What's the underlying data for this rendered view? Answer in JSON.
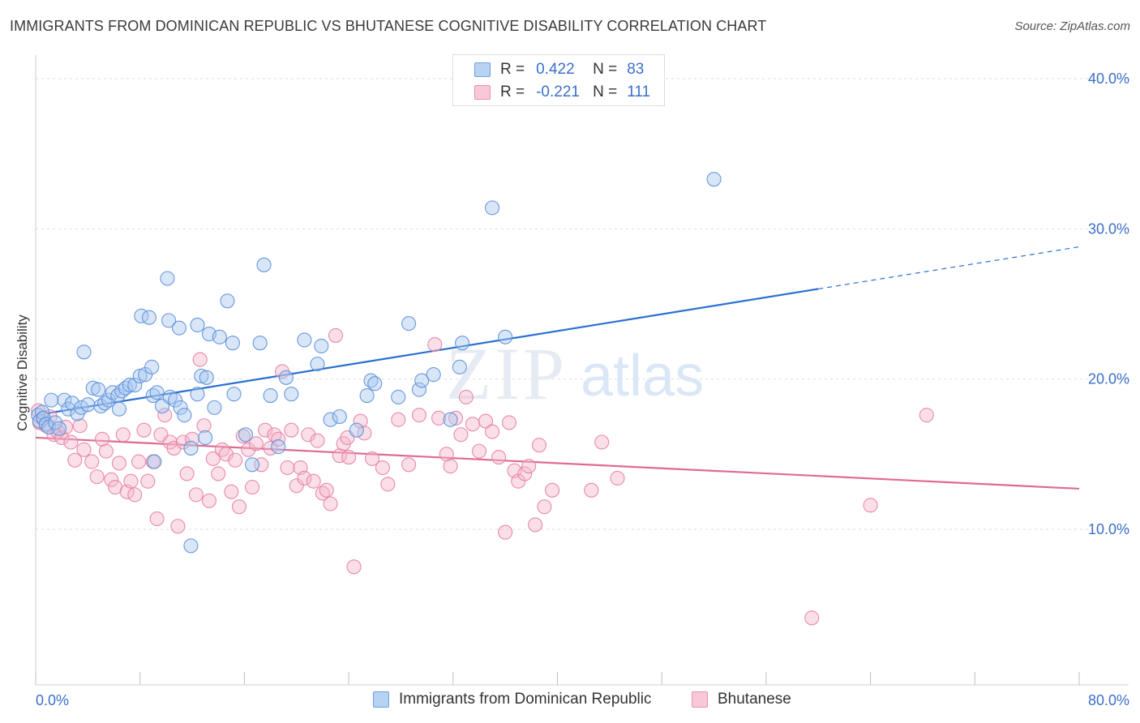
{
  "header": {
    "title": "IMMIGRANTS FROM DOMINICAN REPUBLIC VS BHUTANESE COGNITIVE DISABILITY CORRELATION CHART",
    "source": "Source: ZipAtlas.com"
  },
  "legend_top": {
    "rows": [
      {
        "r_label": "R =",
        "r_value": "0.422",
        "n_label": "N =",
        "n_value": "83"
      },
      {
        "r_label": "R =",
        "r_value": "-0.221",
        "n_label": "N =",
        "n_value": "111"
      }
    ]
  },
  "watermark": {
    "zip": "ZIP",
    "atlas": "atlas"
  },
  "colors": {
    "blue_fill": "#a9c8f0",
    "blue_stroke": "#5a8fd8",
    "blue_line": "#2a6fd0",
    "pink_fill": "#f5b5cb",
    "pink_stroke": "#e57fa3",
    "pink_line": "#e06a95",
    "axis_label": "#3b6fc9",
    "grid": "#dddddd"
  },
  "chart_data": {
    "type": "scatter",
    "title": "IMMIGRANTS FROM DOMINICAN REPUBLIC VS BHUTANESE COGNITIVE DISABILITY CORRELATION CHART",
    "xlabel": "",
    "ylabel": "Cognitive Disability",
    "xlim": [
      0,
      80
    ],
    "ylim": [
      0,
      42
    ],
    "x_tick_labels": [
      "0.0%",
      "80.0%"
    ],
    "y_ticks": [
      10,
      20,
      30,
      40
    ],
    "y_tick_labels": [
      "10.0%",
      "20.0%",
      "30.0%",
      "40.0%"
    ],
    "grid": true,
    "legend_position": "bottom",
    "series": [
      {
        "name": "Immigrants from Dominican Republic",
        "color": "#5a8fd8",
        "r": 0.422,
        "n": 83,
        "trend": {
          "x": [
            0,
            60,
            80
          ],
          "y": [
            17.6,
            26.0,
            28.8
          ],
          "solid_until": 60
        },
        "points": [
          [
            0.2,
            17.6
          ],
          [
            0.3,
            17.2
          ],
          [
            0.5,
            17.8
          ],
          [
            0.6,
            17.4
          ],
          [
            0.8,
            17.0
          ],
          [
            1.0,
            16.8
          ],
          [
            1.2,
            18.6
          ],
          [
            1.5,
            17.1
          ],
          [
            1.8,
            16.7
          ],
          [
            2.2,
            18.6
          ],
          [
            2.5,
            18.0
          ],
          [
            2.8,
            18.4
          ],
          [
            3.2,
            17.7
          ],
          [
            3.5,
            18.1
          ],
          [
            4.0,
            18.3
          ],
          [
            4.4,
            19.4
          ],
          [
            4.8,
            19.3
          ],
          [
            5.0,
            18.2
          ],
          [
            5.3,
            18.4
          ],
          [
            5.6,
            18.6
          ],
          [
            3.7,
            21.8
          ],
          [
            5.9,
            19.1
          ],
          [
            6.3,
            18.9
          ],
          [
            6.6,
            19.2
          ],
          [
            6.4,
            18.0
          ],
          [
            6.9,
            19.4
          ],
          [
            7.2,
            19.6
          ],
          [
            7.6,
            19.6
          ],
          [
            8.0,
            20.2
          ],
          [
            8.4,
            20.3
          ],
          [
            8.9,
            20.8
          ],
          [
            9.0,
            18.9
          ],
          [
            9.3,
            19.1
          ],
          [
            9.7,
            18.2
          ],
          [
            10.3,
            18.8
          ],
          [
            10.7,
            18.6
          ],
          [
            11.1,
            18.1
          ],
          [
            11.4,
            17.6
          ],
          [
            11.9,
            15.4
          ],
          [
            12.4,
            19.0
          ],
          [
            12.7,
            20.2
          ],
          [
            13.1,
            20.1
          ],
          [
            8.1,
            24.2
          ],
          [
            8.7,
            24.1
          ],
          [
            10.2,
            23.9
          ],
          [
            11.0,
            23.4
          ],
          [
            12.4,
            23.6
          ],
          [
            13.3,
            23.0
          ],
          [
            14.1,
            22.8
          ],
          [
            15.1,
            22.4
          ],
          [
            14.7,
            25.2
          ],
          [
            10.1,
            26.7
          ],
          [
            13.7,
            18.1
          ],
          [
            13.0,
            16.1
          ],
          [
            15.2,
            19.0
          ],
          [
            16.1,
            16.3
          ],
          [
            16.6,
            14.3
          ],
          [
            17.2,
            22.4
          ],
          [
            17.5,
            27.6
          ],
          [
            18.0,
            18.9
          ],
          [
            19.2,
            20.1
          ],
          [
            19.6,
            19.0
          ],
          [
            20.6,
            22.6
          ],
          [
            21.6,
            21.0
          ],
          [
            21.9,
            22.2
          ],
          [
            22.6,
            17.3
          ],
          [
            23.3,
            17.5
          ],
          [
            24.6,
            16.6
          ],
          [
            25.4,
            18.9
          ],
          [
            25.7,
            19.9
          ],
          [
            26.0,
            19.7
          ],
          [
            27.8,
            18.8
          ],
          [
            28.6,
            23.7
          ],
          [
            29.4,
            19.3
          ],
          [
            29.6,
            19.9
          ],
          [
            30.5,
            20.3
          ],
          [
            31.8,
            17.3
          ],
          [
            32.7,
            22.4
          ],
          [
            32.5,
            20.8
          ],
          [
            35.0,
            31.4
          ],
          [
            36.0,
            22.8
          ],
          [
            52.0,
            33.3
          ],
          [
            11.9,
            8.9
          ],
          [
            9.1,
            14.5
          ],
          [
            18.6,
            15.5
          ]
        ]
      },
      {
        "name": "Bhutanese",
        "color": "#e57fa3",
        "r": -0.221,
        "n": 111,
        "trend": {
          "x": [
            0,
            80
          ],
          "y": [
            16.1,
            12.7
          ],
          "solid_until": 80
        },
        "points": [
          [
            0.2,
            17.9
          ],
          [
            0.3,
            17.1
          ],
          [
            0.5,
            17.4
          ],
          [
            0.8,
            16.9
          ],
          [
            1.1,
            17.5
          ],
          [
            1.4,
            16.3
          ],
          [
            1.7,
            16.5
          ],
          [
            2.0,
            16.1
          ],
          [
            2.3,
            16.8
          ],
          [
            2.7,
            15.8
          ],
          [
            3.0,
            14.6
          ],
          [
            3.4,
            16.9
          ],
          [
            3.7,
            15.3
          ],
          [
            4.3,
            14.5
          ],
          [
            4.7,
            13.5
          ],
          [
            5.1,
            16.0
          ],
          [
            5.4,
            15.2
          ],
          [
            5.8,
            13.3
          ],
          [
            6.1,
            12.8
          ],
          [
            6.4,
            14.4
          ],
          [
            6.7,
            16.3
          ],
          [
            7.0,
            12.5
          ],
          [
            7.3,
            13.2
          ],
          [
            7.6,
            12.3
          ],
          [
            7.9,
            14.5
          ],
          [
            8.3,
            16.6
          ],
          [
            8.6,
            13.2
          ],
          [
            9.0,
            14.5
          ],
          [
            9.3,
            10.7
          ],
          [
            9.6,
            16.3
          ],
          [
            9.9,
            17.6
          ],
          [
            10.3,
            15.8
          ],
          [
            10.6,
            15.4
          ],
          [
            10.9,
            10.2
          ],
          [
            11.3,
            15.8
          ],
          [
            11.6,
            13.7
          ],
          [
            12.0,
            16.0
          ],
          [
            12.3,
            12.3
          ],
          [
            12.6,
            21.3
          ],
          [
            12.9,
            16.9
          ],
          [
            13.3,
            11.9
          ],
          [
            13.6,
            14.7
          ],
          [
            14.0,
            13.7
          ],
          [
            14.3,
            15.3
          ],
          [
            14.6,
            15.0
          ],
          [
            15.0,
            12.5
          ],
          [
            15.3,
            14.6
          ],
          [
            15.6,
            11.5
          ],
          [
            15.9,
            16.2
          ],
          [
            16.3,
            15.3
          ],
          [
            16.6,
            12.8
          ],
          [
            16.9,
            15.7
          ],
          [
            17.3,
            14.3
          ],
          [
            17.6,
            16.6
          ],
          [
            18.0,
            15.4
          ],
          [
            18.3,
            16.3
          ],
          [
            18.6,
            16.0
          ],
          [
            18.9,
            20.5
          ],
          [
            19.3,
            14.1
          ],
          [
            19.6,
            16.6
          ],
          [
            20.0,
            12.9
          ],
          [
            20.3,
            14.1
          ],
          [
            20.6,
            13.4
          ],
          [
            20.9,
            16.3
          ],
          [
            21.3,
            13.2
          ],
          [
            21.6,
            15.9
          ],
          [
            22.0,
            12.4
          ],
          [
            22.3,
            12.6
          ],
          [
            22.6,
            11.7
          ],
          [
            23.0,
            22.9
          ],
          [
            23.3,
            14.9
          ],
          [
            23.6,
            15.7
          ],
          [
            24.0,
            14.8
          ],
          [
            24.4,
            7.5
          ],
          [
            24.9,
            17.2
          ],
          [
            25.8,
            14.7
          ],
          [
            26.6,
            14.1
          ],
          [
            27.0,
            13.0
          ],
          [
            27.8,
            17.3
          ],
          [
            28.6,
            14.3
          ],
          [
            29.4,
            17.6
          ],
          [
            30.6,
            22.3
          ],
          [
            30.9,
            17.4
          ],
          [
            31.5,
            15.0
          ],
          [
            31.8,
            14.2
          ],
          [
            32.2,
            17.4
          ],
          [
            32.6,
            16.3
          ],
          [
            33.0,
            18.8
          ],
          [
            33.5,
            17.0
          ],
          [
            34.0,
            15.2
          ],
          [
            34.5,
            17.2
          ],
          [
            35.0,
            16.5
          ],
          [
            35.5,
            14.8
          ],
          [
            36.0,
            9.8
          ],
          [
            36.3,
            17.1
          ],
          [
            36.7,
            13.9
          ],
          [
            37.0,
            13.2
          ],
          [
            37.5,
            13.7
          ],
          [
            37.8,
            14.2
          ],
          [
            38.3,
            10.3
          ],
          [
            38.6,
            15.6
          ],
          [
            39.0,
            11.5
          ],
          [
            39.6,
            12.6
          ],
          [
            42.6,
            12.6
          ],
          [
            43.4,
            15.8
          ],
          [
            44.6,
            13.4
          ],
          [
            64.0,
            11.6
          ],
          [
            68.3,
            17.6
          ],
          [
            59.5,
            4.1
          ],
          [
            23.9,
            16.1
          ],
          [
            25.2,
            16.4
          ]
        ]
      }
    ]
  },
  "legend_bottom": {
    "items": [
      {
        "label": "Immigrants from Dominican Republic"
      },
      {
        "label": "Bhutanese"
      }
    ]
  }
}
